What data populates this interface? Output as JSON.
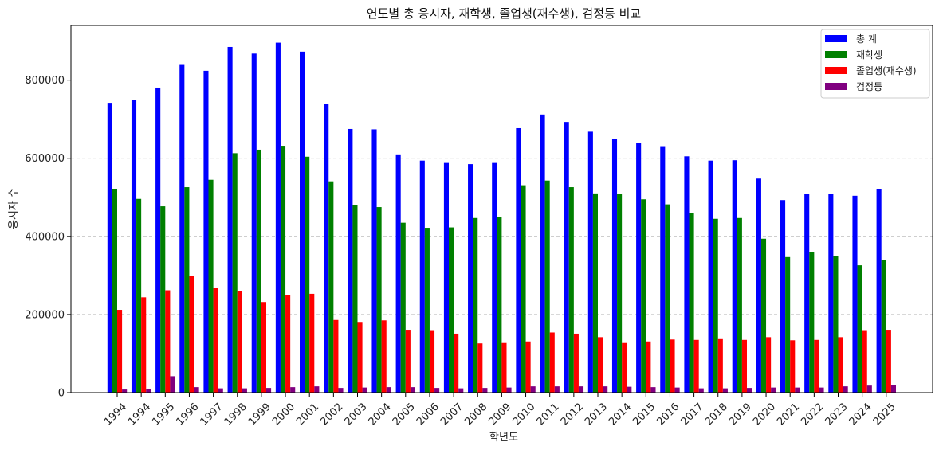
{
  "chart_data": {
    "type": "bar",
    "title": "연도별 총 응시자, 재학생, 졸업생(재수생), 검정등 비교",
    "xlabel": "학년도",
    "ylabel": "응시자 수",
    "ylim": [
      0,
      940000
    ],
    "yticks": [
      0,
      200000,
      400000,
      600000,
      800000
    ],
    "grid": "y-dashed",
    "legend_position": "top-right",
    "categories": [
      "1994",
      "1994",
      "1995",
      "1996",
      "1997",
      "1998",
      "1999",
      "2000",
      "2001",
      "2002",
      "2003",
      "2004",
      "2005",
      "2006",
      "2007",
      "2008",
      "2009",
      "2010",
      "2011",
      "2012",
      "2013",
      "2014",
      "2015",
      "2016",
      "2017",
      "2018",
      "2019",
      "2020",
      "2021",
      "2022",
      "2023",
      "2024",
      "2025"
    ],
    "series": [
      {
        "name": "총 계",
        "color": "#0000ff",
        "values": [
          742000,
          750000,
          781000,
          841000,
          824000,
          885000,
          868000,
          896000,
          873000,
          739000,
          675000,
          674000,
          610000,
          594000,
          588000,
          585000,
          588000,
          677000,
          712000,
          693000,
          668000,
          650000,
          640000,
          631000,
          605000,
          594000,
          595000,
          548000,
          493000,
          509000,
          508000,
          504000,
          522000
        ]
      },
      {
        "name": "재학생",
        "color": "#008000",
        "values": [
          522000,
          496000,
          477000,
          526000,
          545000,
          613000,
          622000,
          632000,
          604000,
          541000,
          481000,
          475000,
          435000,
          422000,
          423000,
          447000,
          449000,
          531000,
          543000,
          526000,
          510000,
          508000,
          495000,
          482000,
          459000,
          445000,
          447000,
          394000,
          347000,
          360000,
          350000,
          326000,
          340000
        ]
      },
      {
        "name": "졸업생(재수생)",
        "color": "#ff0000",
        "values": [
          212000,
          244000,
          262000,
          299000,
          268000,
          261000,
          232000,
          250000,
          253000,
          186000,
          181000,
          185000,
          161000,
          160000,
          151000,
          126000,
          127000,
          131000,
          154000,
          151000,
          142000,
          127000,
          131000,
          136000,
          135000,
          137000,
          135000,
          142000,
          134000,
          135000,
          142000,
          160000,
          161000
        ]
      },
      {
        "name": "검정등",
        "color": "#800080",
        "values": [
          8000,
          10000,
          42000,
          14000,
          11000,
          11000,
          12000,
          14000,
          16000,
          12000,
          13000,
          14000,
          14000,
          12000,
          11000,
          12000,
          13000,
          16000,
          16000,
          16000,
          16000,
          15000,
          14000,
          13000,
          11000,
          11000,
          12000,
          13000,
          13000,
          13000,
          16000,
          18000,
          20000
        ]
      }
    ]
  }
}
